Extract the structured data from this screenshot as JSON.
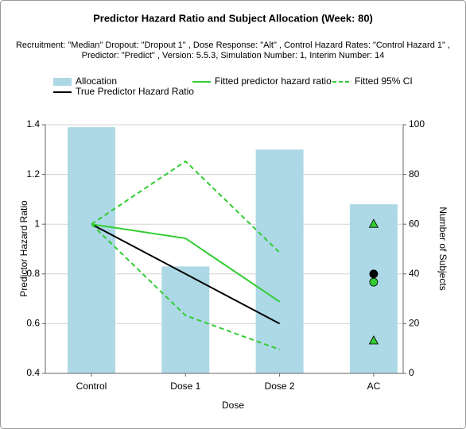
{
  "chart_data": {
    "type": "bar-line",
    "title": "Predictor Hazard Ratio and Subject Allocation (Week: 80)",
    "subtitle": [
      "Recruitment: \"Median\" Dropout: \"Dropout 1\" , Dose Response: \"Alt\" , Control Hazard Rates: \"Control Hazard 1\" ,",
      "Predictor: \"Predict\" , Version: 5.5.3, Simulation Number: 1, Interim Number: 14"
    ],
    "x_label": "Dose",
    "y_label": "Predictor Hazard Ratio",
    "y2_label": "Number of Subjects",
    "categories": [
      "Control",
      "Dose 1",
      "Dose 2",
      "AC"
    ],
    "ylim": [
      0.4,
      1.4
    ],
    "yticks": [
      0.4,
      0.6,
      0.8,
      1,
      1.2,
      1.4
    ],
    "y2lim": [
      0,
      100
    ],
    "y2ticks": [
      0,
      20,
      40,
      60,
      80,
      100
    ],
    "grid": true,
    "bars": {
      "name": "Allocation",
      "color": "#add8e6",
      "axis": "y2",
      "values": [
        99,
        43,
        90,
        68
      ]
    },
    "series": [
      {
        "name": "True Predictor Hazard Ratio",
        "color": "#000000",
        "dash": false,
        "marker": "circle",
        "values": [
          1,
          0.8,
          0.6,
          null
        ],
        "marker_values": [
          null,
          null,
          null,
          0.8
        ]
      },
      {
        "name": "Fitted predictor hazard ratio",
        "color": "#32cd32",
        "dash": false,
        "marker": "circle",
        "values": [
          1,
          0.943,
          0.688,
          null
        ],
        "marker_values": [
          null,
          null,
          null,
          0.767
        ]
      },
      {
        "name": "Fitted 95% CI",
        "color": "#32cd32",
        "dash": true,
        "marker": "triangle",
        "values": [
          1,
          1.253,
          0.886,
          null
        ],
        "marker_values": [
          null,
          null,
          null,
          1
        ],
        "lower": [
          1,
          0.633,
          0.496,
          null
        ],
        "lower_marker_values": [
          null,
          null,
          null,
          0.531
        ]
      }
    ]
  }
}
